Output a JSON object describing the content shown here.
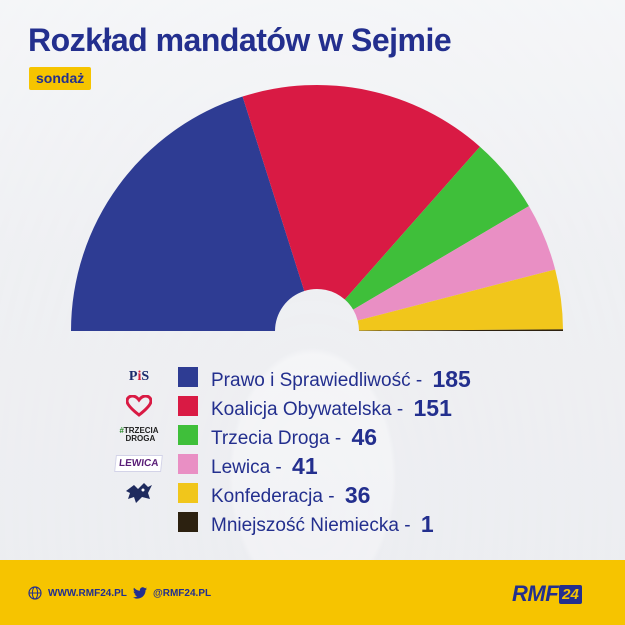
{
  "title": "Rozkład mandatów w Sejmie",
  "badge": "sondaż",
  "chart_data": {
    "type": "pie",
    "subtype": "semicircle-parliament",
    "total": 460,
    "series": [
      {
        "name": "Prawo i Sprawiedliwość",
        "value": 185,
        "color": "#2e3c93",
        "logo": "pis-logo"
      },
      {
        "name": "Koalicja Obywatelska",
        "value": 151,
        "color": "#d91a44",
        "logo": "heart-icon"
      },
      {
        "name": "Trzecia Droga",
        "value": 46,
        "color": "#3fbf3a",
        "logo": "trzecia-droga-logo"
      },
      {
        "name": "Lewica",
        "value": 41,
        "color": "#e98fc4",
        "logo": "lewica-logo"
      },
      {
        "name": "Konfederacja",
        "value": 36,
        "color": "#f1c61b",
        "logo": "konfederacja-logo"
      },
      {
        "name": "Mniejszość Niemiecka",
        "value": 1,
        "color": "#2c2110",
        "logo": ""
      }
    ],
    "separator": " - "
  },
  "logos": {
    "pis": {
      "p": "P",
      "i": "i",
      "s": "S"
    },
    "trzecia_droga": {
      "hash": "#",
      "line1": "TRZECIA",
      "line2": "DROGA"
    },
    "lewica": "LEWICA"
  },
  "footer": {
    "website": "WWW.RMF24.PL",
    "twitter": "@RMF24.PL",
    "brand_text": "RMF",
    "brand_num": "24"
  },
  "colors": {
    "title": "#232f8e",
    "accent": "#f6c400"
  }
}
